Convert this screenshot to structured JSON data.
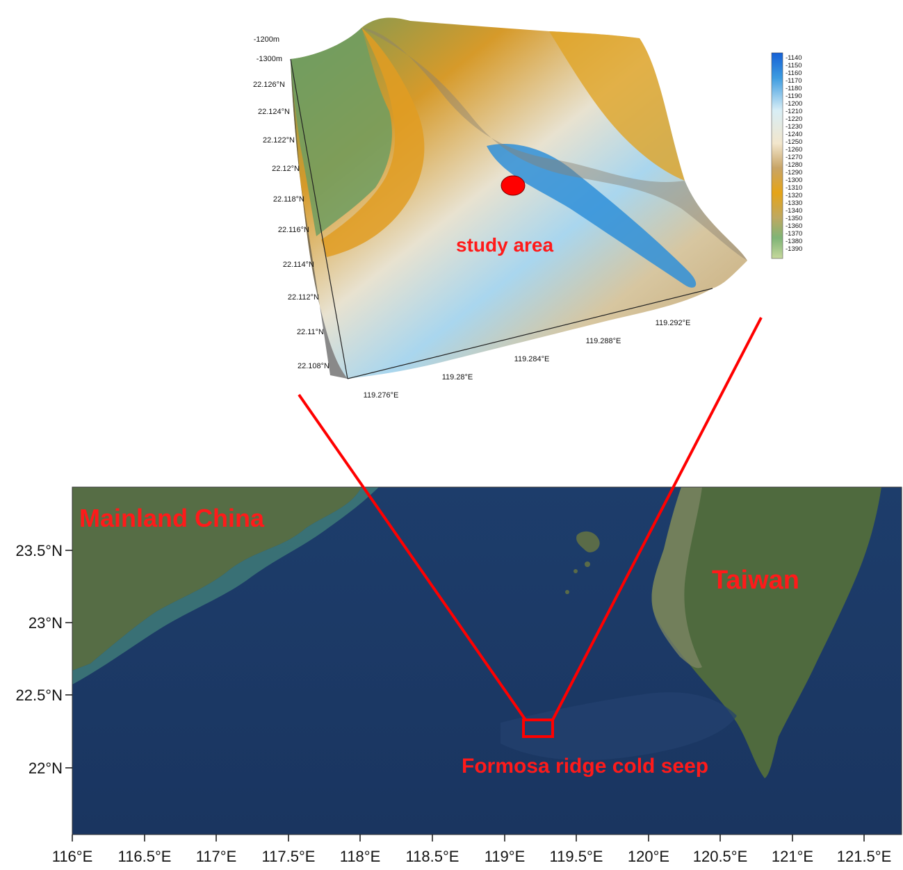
{
  "map": {
    "labels": {
      "mainland": "Mainland China",
      "taiwan": "Taiwan",
      "seep": "Formosa ridge cold seep",
      "study": "study area"
    },
    "x_axis_ticks": [
      "116°E",
      "116.5°E",
      "117°E",
      "117.5°E",
      "118°E",
      "118.5°E",
      "119°E",
      "119.5°E",
      "120°E",
      "120.5°E",
      "121°E",
      "121.5°E"
    ],
    "y_axis_ticks": [
      "23.5°N",
      "23°N",
      "22.5°N",
      "22°N"
    ],
    "colors": {
      "ocean": "#1c3a66",
      "land": "#4f6a3e",
      "highlight": "#ff0000"
    }
  },
  "inset": {
    "lat_ticks": [
      "-1200m",
      "-1300m",
      "22.126°N",
      "22.124°N",
      "22.122°N",
      "22.12°N",
      "22.118°N",
      "22.116°N",
      "22.114°N",
      "22.112°N",
      "22.11°N",
      "22.108°N"
    ],
    "lon_ticks": [
      "119.276°E",
      "119.28°E",
      "119.284°E",
      "119.288°E",
      "119.292°E"
    ],
    "colorbar_labels": [
      "-1140",
      "-1150",
      "-1160",
      "-1170",
      "-1180",
      "-1190",
      "-1200",
      "-1210",
      "-1220",
      "-1230",
      "-1240",
      "-1250",
      "-1260",
      "-1270",
      "-1280",
      "-1290",
      "-1300",
      "-1310",
      "-1320",
      "-1330",
      "-1340",
      "-1350",
      "-1360",
      "-1370",
      "-1380",
      "-1390"
    ]
  }
}
